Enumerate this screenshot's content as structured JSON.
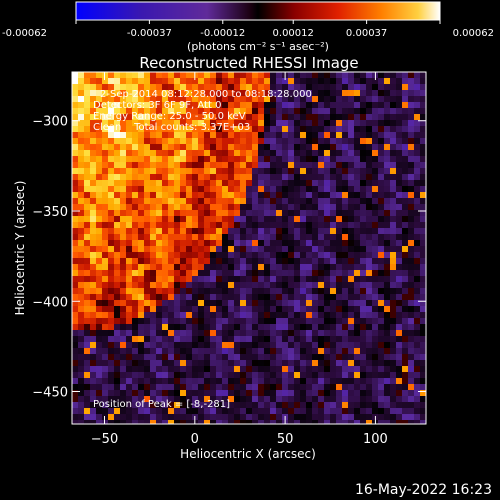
{
  "colorbar": {
    "ticks": [
      "-0.00062",
      "-0.00037",
      "-0.00012",
      "0.00012",
      "0.00037",
      "0.00062"
    ],
    "tick_values": [
      -0.00062,
      -0.00037,
      -0.00012,
      0.00012,
      0.00037,
      0.00062
    ],
    "unit": "(photons cm⁻² s⁻¹ asec⁻²)",
    "range": [
      -0.00062,
      0.00062
    ]
  },
  "chart_data": {
    "type": "heatmap",
    "title": "Reconstructed RHESSI Image",
    "xlabel": "Heliocentric X (arcsec)",
    "ylabel": "Heliocentric Y (arcsec)",
    "xlim": [
      -68,
      128
    ],
    "ylim": [
      -468,
      -273
    ],
    "x_ticks": [
      -50,
      0,
      50,
      100
    ],
    "y_ticks": [
      -300,
      -350,
      -400,
      -450
    ],
    "x_tick_labels": [
      "−50",
      "0",
      "50",
      "100"
    ],
    "y_tick_labels": [
      "−300",
      "−350",
      "−400",
      "−450"
    ],
    "annotations": [
      "2-Sep-2014 08:12:28.000 to 08:18:28.000",
      "Detectors: 3F 6F 9F, Att 0",
      "Energy Range: 25.0 - 50.0 keV",
      "Clean    Total counts: 3.37E+03"
    ],
    "peak_label": "Position of Peak = [-8,-281]",
    "peak": [
      -8,
      -281
    ],
    "colormap": [
      "#0000ff",
      "#3c10b4",
      "#5a2aa0",
      "#2a0a3a",
      "#000000",
      "#7a0000",
      "#cc1a00",
      "#ff5a00",
      "#ffaa00",
      "#ffe040",
      "#ffffff"
    ]
  },
  "footer": {
    "date": "16-May-2022 16:23"
  }
}
